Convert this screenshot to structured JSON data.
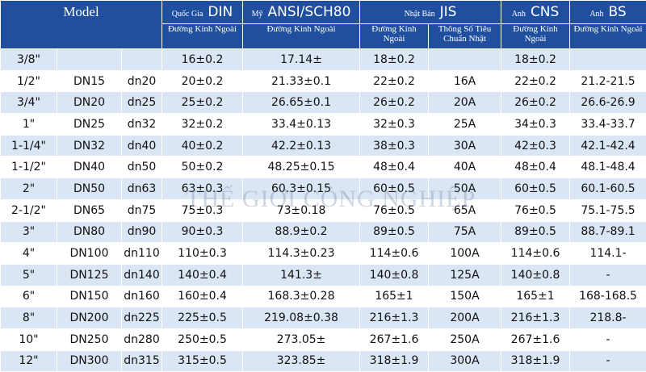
{
  "header": {
    "model": "Model",
    "standards": [
      {
        "country": "Quốc Gia",
        "name": "DIN"
      },
      {
        "country": "Mỹ",
        "name": "ANSI/SCH80"
      },
      {
        "country": "Nhật Bản",
        "name": "JIS"
      },
      {
        "country": "Anh",
        "name": "CNS"
      },
      {
        "country": "Anh",
        "name": "BS"
      }
    ],
    "subheaders": [
      "Đường Kính Ngoài",
      "Đường Kính Ngoài",
      "Đường Kính Ngoài",
      "Thông Số Tiêu Chuẩn Nhật",
      "Đường Kính Ngoài",
      "Đường Kính Ngoài"
    ]
  },
  "table": {
    "rows": [
      [
        "3/8\"",
        null,
        null,
        "16±0.2",
        "17.14±",
        "18±0.2",
        null,
        "18±0.2",
        null
      ],
      [
        "1/2\"",
        "DN15",
        "dn20",
        "20±0.2",
        "21.33±0.1",
        "22±0.2",
        "16A",
        "22±0.2",
        "21.2-21.5"
      ],
      [
        "3/4\"",
        "DN20",
        "dn25",
        "25±0.2",
        "26.65±0.1",
        "26±0.2",
        "20A",
        "26±0.2",
        "26.6-26.9"
      ],
      [
        "1\"",
        "DN25",
        "dn32",
        "32±0.2",
        "33.4±0.13",
        "32±0.3",
        "25A",
        "34±0.3",
        "33.4-33.7"
      ],
      [
        "1-1/4\"",
        "DN32",
        "dn40",
        "40±0.2",
        "42.2±0.13",
        "38±0.3",
        "30A",
        "42±0.3",
        "42.1-42.4"
      ],
      [
        "1-1/2\"",
        "DN40",
        "dn50",
        "50±0.2",
        "48.25±0.15",
        "48±0.4",
        "40A",
        "48±0.4",
        "48.1-48.4"
      ],
      [
        "2\"",
        "DN50",
        "dn63",
        "63±0.3",
        "60.3±0.15",
        "60±0.5",
        "50A",
        "60±0.5",
        "60.1-60.5"
      ],
      [
        "2-1/2\"",
        "DN65",
        "dn75",
        "75±0.3",
        "73±0.18",
        "76±0.5",
        "65A",
        "76±0.5",
        "75.1-75.5"
      ],
      [
        "3\"",
        "DN80",
        "dn90",
        "90±0.3",
        "88.9±0.2",
        "89±0.5",
        "75A",
        "89±0.5",
        "88.7-89.1"
      ],
      [
        "4\"",
        "DN100",
        "dn110",
        "110±0.3",
        "114.3±0.23",
        "114±0.6",
        "100A",
        "114±0.6",
        "114.1-"
      ],
      [
        "5\"",
        "DN125",
        "dn140",
        "140±0.4",
        "141.3±",
        "140±0.8",
        "125A",
        "140±0.8",
        "-"
      ],
      [
        "6\"",
        "DN150",
        "dn160",
        "160±0.4",
        "168.3±0.28",
        "165±1",
        "150A",
        "165±1",
        "168-168.5"
      ],
      [
        "8\"",
        "DN200",
        "dn225",
        "225±0.5",
        "219.08±0.38",
        "216±1.3",
        "200A",
        "216±1.3",
        "218.8-"
      ],
      [
        "10\"",
        "DN250",
        "dn280",
        "250±0.5",
        "273.05±",
        "267±1.6",
        "250A",
        "267±1.6",
        "-"
      ],
      [
        "12\"",
        "DN300",
        "dn315",
        "315±0.5",
        "323.85±",
        "318±1.9",
        "300A",
        "318±1.9",
        "-"
      ]
    ]
  },
  "watermark": "THẾ GIỚI CÔNG NGHIỆP"
}
